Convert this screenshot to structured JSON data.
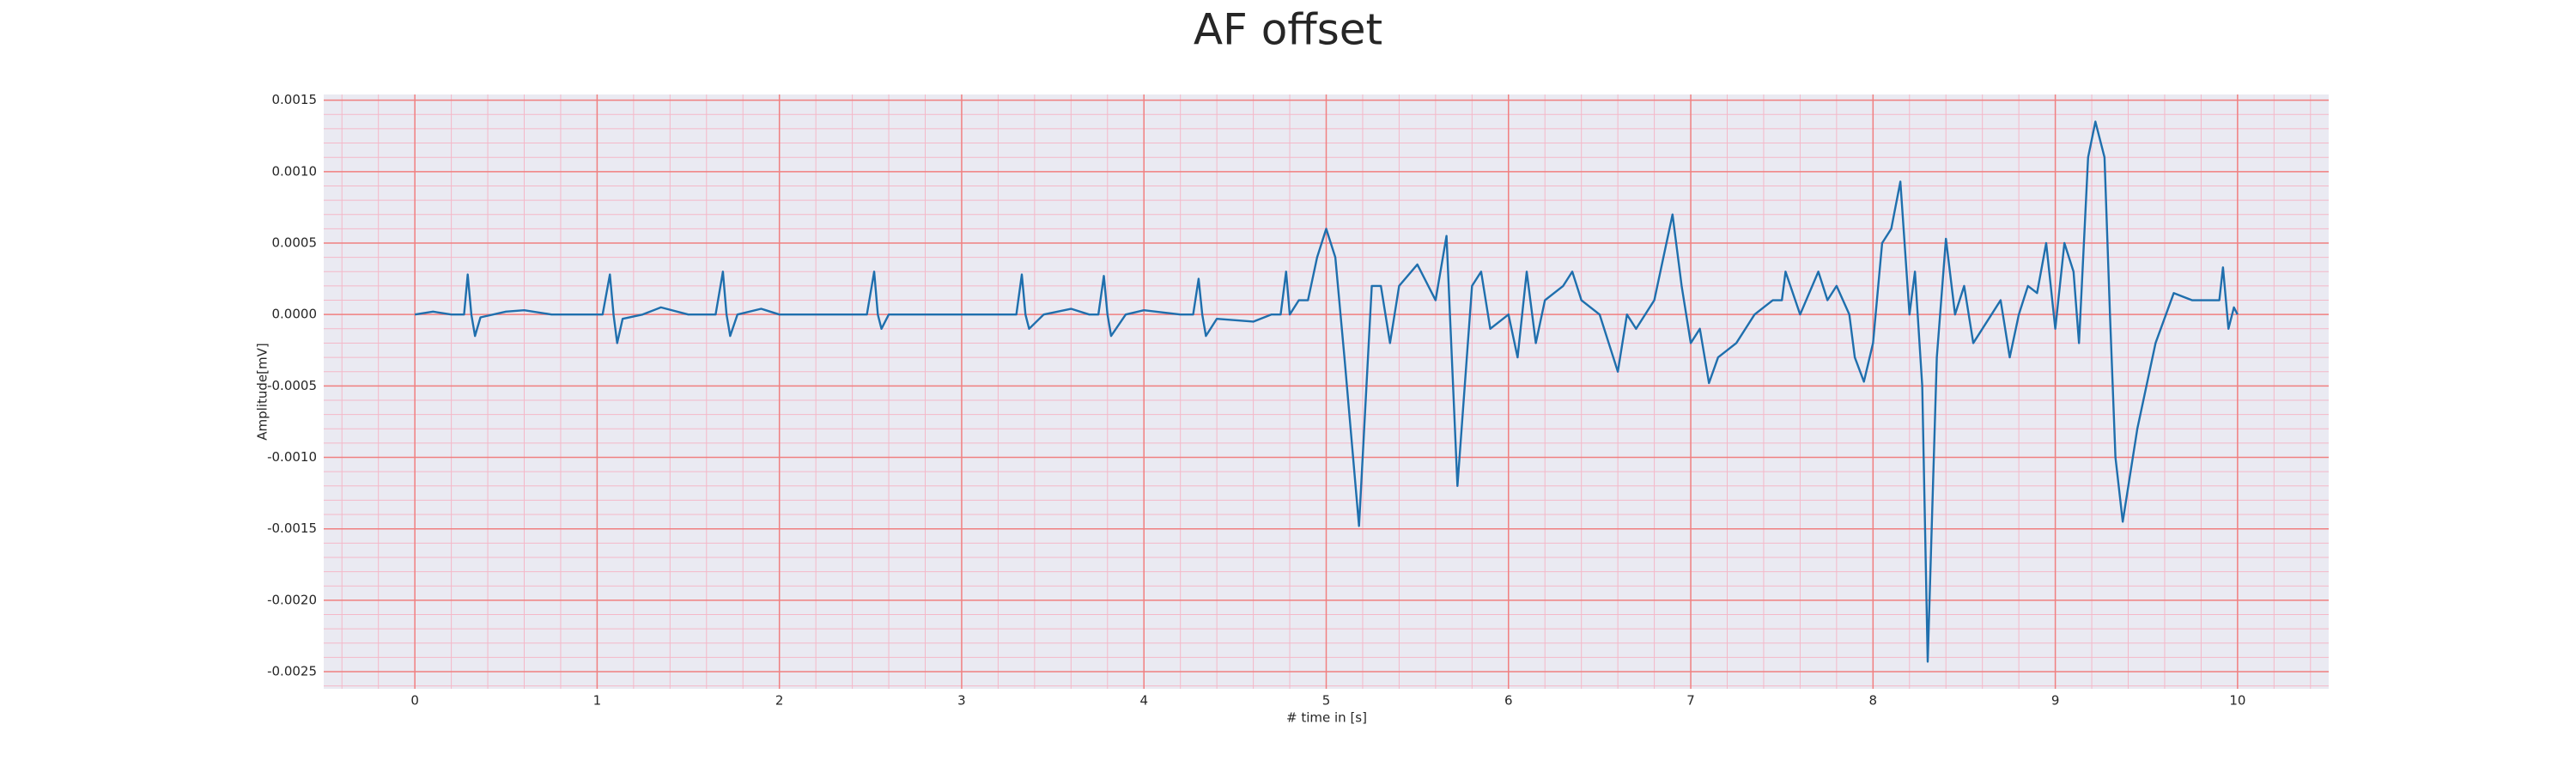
{
  "chart_data": {
    "type": "line",
    "title": "AF offset",
    "x_label": "# time in [s]",
    "y_label": "Amplitude[mV]",
    "color": "#1f6fad",
    "grid": true,
    "minor_grid": true,
    "xlim": [
      -0.5,
      10.5
    ],
    "ylim": [
      -0.00262,
      0.00154
    ],
    "xticks": [
      0,
      1,
      2,
      3,
      4,
      5,
      6,
      7,
      8,
      9,
      10
    ],
    "yticks": [
      {
        "value": -0.0025,
        "label": "-0.0025"
      },
      {
        "value": -0.002,
        "label": "-0.0020"
      },
      {
        "value": -0.0015,
        "label": "-0.0015"
      },
      {
        "value": -0.001,
        "label": "-0.0010"
      },
      {
        "value": -0.0005,
        "label": "-0.0005"
      },
      {
        "value": 0,
        "label": "0.0000"
      },
      {
        "value": 0.0005,
        "label": "0.0005"
      },
      {
        "value": 0.001,
        "label": "0.0010"
      },
      {
        "value": 0.0015,
        "label": "0.0015"
      }
    ],
    "x": [
      0,
      0.1,
      0.2,
      0.27,
      0.29,
      0.31,
      0.33,
      0.36,
      0.5,
      0.6,
      0.75,
      0.9,
      1.03,
      1.07,
      1.09,
      1.11,
      1.14,
      1.25,
      1.35,
      1.5,
      1.65,
      1.69,
      1.71,
      1.73,
      1.77,
      1.9,
      2.0,
      2.2,
      2.4,
      2.48,
      2.52,
      2.54,
      2.56,
      2.6,
      2.8,
      3.0,
      3.2,
      3.3,
      3.33,
      3.35,
      3.37,
      3.45,
      3.6,
      3.7,
      3.75,
      3.78,
      3.8,
      3.82,
      3.9,
      4.0,
      4.2,
      4.27,
      4.3,
      4.32,
      4.34,
      4.4,
      4.6,
      4.7,
      4.75,
      4.78,
      4.8,
      4.85,
      4.9,
      4.95,
      5.0,
      5.05,
      5.1,
      5.18,
      5.25,
      5.3,
      5.35,
      5.4,
      5.5,
      5.6,
      5.66,
      5.72,
      5.8,
      5.85,
      5.9,
      6.0,
      6.05,
      6.1,
      6.15,
      6.2,
      6.3,
      6.35,
      6.4,
      6.5,
      6.55,
      6.6,
      6.65,
      6.7,
      6.8,
      6.9,
      6.95,
      7.0,
      7.05,
      7.1,
      7.15,
      7.25,
      7.35,
      7.45,
      7.5,
      7.52,
      7.6,
      7.7,
      7.75,
      7.8,
      7.87,
      7.9,
      7.95,
      8.0,
      8.05,
      8.1,
      8.15,
      8.2,
      8.23,
      8.27,
      8.3,
      8.35,
      8.4,
      8.45,
      8.5,
      8.55,
      8.65,
      8.7,
      8.75,
      8.8,
      8.85,
      8.9,
      8.95,
      9.0,
      9.05,
      9.1,
      9.13,
      9.18,
      9.22,
      9.27,
      9.3,
      9.33,
      9.37,
      9.45,
      9.55,
      9.65,
      9.75,
      9.85,
      9.9,
      9.92,
      9.95,
      9.98,
      10.0
    ],
    "values": [
      0,
      2e-05,
      0,
      0,
      0.00028,
      0,
      -0.00015,
      -2e-05,
      2e-05,
      3e-05,
      0,
      0,
      0,
      0.00028,
      0,
      -0.0002,
      -3e-05,
      0,
      5e-05,
      0,
      0,
      0.0003,
      0,
      -0.00015,
      0,
      4e-05,
      0,
      0,
      0,
      0,
      0.0003,
      0,
      -0.0001,
      0,
      0,
      0,
      0,
      0,
      0.00028,
      0,
      -0.0001,
      0,
      4e-05,
      0,
      0,
      0.00027,
      0,
      -0.00015,
      0,
      3e-05,
      0,
      0,
      0.00025,
      0,
      -0.00015,
      -3e-05,
      -5e-05,
      0,
      0,
      0.0003,
      0,
      0.0001,
      0.0001,
      0.0004,
      0.0006,
      0.0004,
      -0.0003,
      -0.00148,
      0.0002,
      0.0002,
      -0.0002,
      0.0002,
      0.00035,
      0.0001,
      0.00055,
      -0.0012,
      0.0002,
      0.0003,
      -0.0001,
      0,
      -0.0003,
      0.0003,
      -0.0002,
      0.0001,
      0.0002,
      0.0003,
      0.0001,
      0,
      -0.0002,
      -0.0004,
      0,
      -0.0001,
      0.0001,
      0.0007,
      0.0002,
      -0.0002,
      -0.0001,
      -0.00048,
      -0.0003,
      -0.0002,
      0,
      0.0001,
      0.0001,
      0.0003,
      0,
      0.0003,
      0.0001,
      0.0002,
      0,
      -0.0003,
      -0.00047,
      -0.0002,
      0.0005,
      0.0006,
      0.00093,
      0,
      0.0003,
      -0.0005,
      -0.00243,
      -0.0003,
      0.00053,
      0,
      0.0002,
      -0.0002,
      0,
      0.0001,
      -0.0003,
      0,
      0.0002,
      0.00015,
      0.0005,
      -0.0001,
      0.0005,
      0.0003,
      -0.0002,
      0.0011,
      0.00135,
      0.0011,
      0,
      -0.001,
      -0.00145,
      -0.0008,
      -0.0002,
      0.00015,
      0.0001,
      0.0001,
      0.0001,
      0.00033,
      -0.0001,
      5e-05,
      0
    ]
  }
}
